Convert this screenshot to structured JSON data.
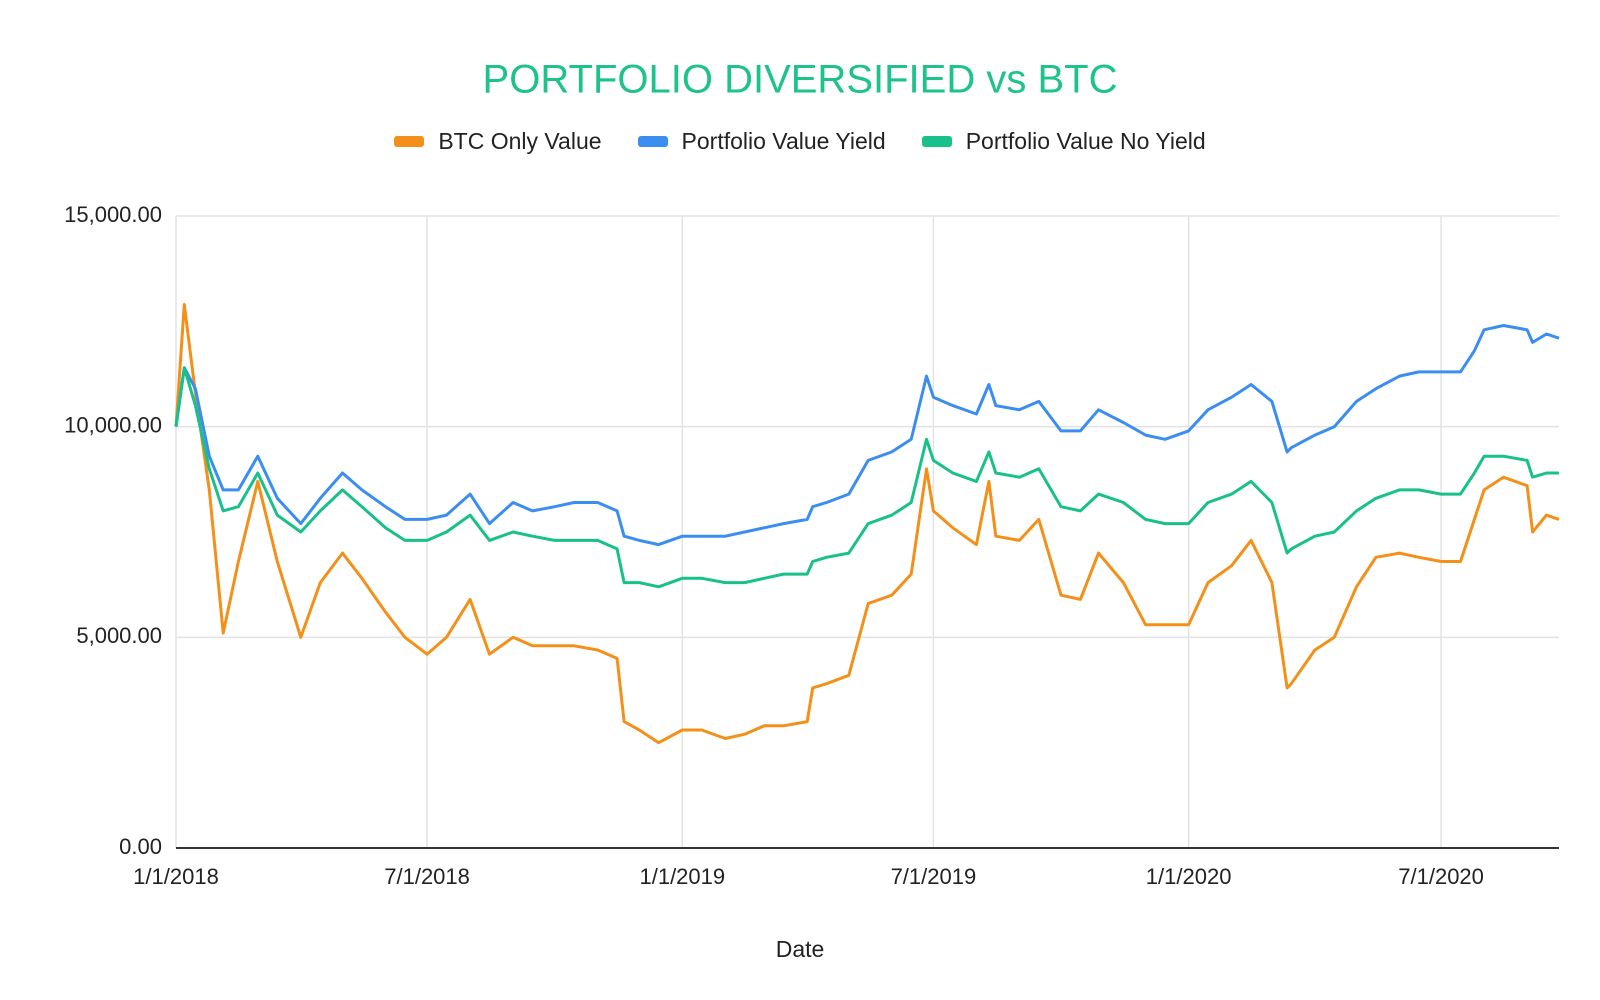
{
  "chart_data": {
    "type": "line",
    "title": "PORTFOLIO DIVERSIFIED vs BTC",
    "x_label": "Date",
    "x": [
      "1/1/2018",
      "1/7/2018",
      "1/15/2018",
      "1/25/2018",
      "2/4/2018",
      "2/15/2018",
      "3/1/2018",
      "3/15/2018",
      "4/1/2018",
      "4/15/2018",
      "5/1/2018",
      "5/15/2018",
      "6/1/2018",
      "6/15/2018",
      "7/1/2018",
      "7/15/2018",
      "8/1/2018",
      "8/15/2018",
      "9/1/2018",
      "9/15/2018",
      "10/1/2018",
      "10/15/2018",
      "11/1/2018",
      "11/15/2018",
      "11/20/2018",
      "12/1/2018",
      "12/15/2018",
      "1/1/2019",
      "1/15/2019",
      "2/1/2019",
      "2/15/2019",
      "3/1/2019",
      "3/15/2019",
      "4/1/2019",
      "4/5/2019",
      "4/15/2019",
      "5/1/2019",
      "5/15/2019",
      "6/1/2019",
      "6/15/2019",
      "6/26/2019",
      "7/1/2019",
      "7/15/2019",
      "8/1/2019",
      "8/10/2019",
      "8/15/2019",
      "9/1/2019",
      "9/15/2019",
      "10/1/2019",
      "10/15/2019",
      "10/28/2019",
      "11/15/2019",
      "12/1/2019",
      "12/15/2019",
      "1/1/2020",
      "1/15/2020",
      "2/1/2020",
      "2/15/2020",
      "3/1/2020",
      "3/12/2020",
      "3/15/2020",
      "4/1/2020",
      "4/15/2020",
      "5/1/2020",
      "5/15/2020",
      "6/1/2020",
      "6/15/2020",
      "7/1/2020",
      "7/15/2020",
      "7/25/2020",
      "8/1/2020",
      "8/15/2020",
      "9/1/2020",
      "9/5/2020",
      "9/15/2020",
      "9/24/2020"
    ],
    "series": [
      {
        "name": "BTC Only Value",
        "color": "#f39019",
        "values": [
          10000,
          12900,
          10800,
          8500,
          5100,
          6800,
          8700,
          6800,
          5000,
          6300,
          7000,
          6400,
          5600,
          5000,
          4600,
          5000,
          5900,
          4600,
          5000,
          4800,
          4800,
          4800,
          4700,
          4500,
          3000,
          2800,
          2500,
          2800,
          2800,
          2600,
          2700,
          2900,
          2900,
          3000,
          3800,
          3900,
          4100,
          5800,
          6000,
          6500,
          9000,
          8000,
          7600,
          7200,
          8700,
          7400,
          7300,
          7800,
          6000,
          5900,
          7000,
          6300,
          5300,
          5300,
          5300,
          6300,
          6700,
          7300,
          6300,
          3800,
          3900,
          4700,
          5000,
          6200,
          6900,
          7000,
          6900,
          6800,
          6800,
          7800,
          8500,
          8800,
          8600,
          7500,
          7900,
          7800
        ]
      },
      {
        "name": "Portfolio Value Yield",
        "color": "#3b8ef0",
        "values": [
          10000,
          11400,
          10900,
          9300,
          8500,
          8500,
          9300,
          8300,
          7700,
          8300,
          8900,
          8500,
          8100,
          7800,
          7800,
          7900,
          8400,
          7700,
          8200,
          8000,
          8100,
          8200,
          8200,
          8000,
          7400,
          7300,
          7200,
          7400,
          7400,
          7400,
          7500,
          7600,
          7700,
          7800,
          8100,
          8200,
          8400,
          9200,
          9400,
          9700,
          11200,
          10700,
          10500,
          10300,
          11000,
          10500,
          10400,
          10600,
          9900,
          9900,
          10400,
          10100,
          9800,
          9700,
          9900,
          10400,
          10700,
          11000,
          10600,
          9400,
          9500,
          9800,
          10000,
          10600,
          10900,
          11200,
          11300,
          11300,
          11300,
          11800,
          12300,
          12400,
          12300,
          12000,
          12200,
          12100
        ]
      },
      {
        "name": "Portfolio Value No Yield",
        "color": "#18c08a",
        "values": [
          10000,
          11400,
          10500,
          9000,
          8000,
          8100,
          8900,
          7900,
          7500,
          8000,
          8500,
          8100,
          7600,
          7300,
          7300,
          7500,
          7900,
          7300,
          7500,
          7400,
          7300,
          7300,
          7300,
          7100,
          6300,
          6300,
          6200,
          6400,
          6400,
          6300,
          6300,
          6400,
          6500,
          6500,
          6800,
          6900,
          7000,
          7700,
          7900,
          8200,
          9700,
          9200,
          8900,
          8700,
          9400,
          8900,
          8800,
          9000,
          8100,
          8000,
          8400,
          8200,
          7800,
          7700,
          7700,
          8200,
          8400,
          8700,
          8200,
          7000,
          7100,
          7400,
          7500,
          8000,
          8300,
          8500,
          8500,
          8400,
          8400,
          8900,
          9300,
          9300,
          9200,
          8800,
          8900,
          8900
        ]
      }
    ],
    "xlim": [
      "1/1/2018",
      "9/24/2020"
    ],
    "xticks": [
      "1/1/2018",
      "7/1/2018",
      "1/1/2019",
      "7/1/2019",
      "1/1/2020",
      "7/1/2020"
    ],
    "ylim": [
      0,
      15000
    ],
    "yticks": [
      {
        "value": 0,
        "label": "0.00"
      },
      {
        "value": 5000,
        "label": "5,000.00"
      },
      {
        "value": 10000,
        "label": "10,000.00"
      },
      {
        "value": 15000,
        "label": "15,000.00"
      }
    ],
    "grid": true
  }
}
